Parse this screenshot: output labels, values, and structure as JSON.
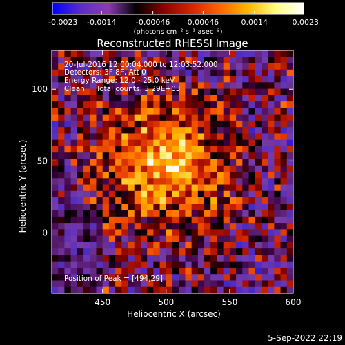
{
  "colorbar": {
    "tick_labels": [
      "-0.0023",
      "-0.0014",
      "-0.00046",
      "0.00046",
      "0.0014",
      "0.0023"
    ],
    "tick_values": [
      -0.0023,
      -0.0014,
      -0.00046,
      0.00046,
      0.0014,
      0.0023
    ],
    "range": [
      -0.0023,
      0.0023
    ],
    "units_label": "(photons cm⁻² s⁻¹ asec⁻²)",
    "colormap_stops": [
      "#0000ff",
      "#5a2dc8",
      "#8c3cb4",
      "#000000",
      "#8c0000",
      "#d22800",
      "#ff6400",
      "#ffb400",
      "#ffff80",
      "#ffffff"
    ]
  },
  "chart_data": {
    "type": "heatmap",
    "title": "Reconstructed RHESSI Image",
    "xlabel": "Heliocentric X (arcsec)",
    "ylabel": "Heliocentric Y (arcsec)",
    "xlim": [
      410,
      600
    ],
    "ylim": [
      -42,
      127
    ],
    "x_ticks": [
      450,
      500,
      550,
      600
    ],
    "y_ticks": [
      0,
      50,
      100
    ],
    "x_tick_labels": [
      "450",
      "500",
      "550",
      "600"
    ],
    "y_tick_labels": [
      "0",
      "50",
      "100"
    ],
    "peak_position": [
      494,
      29
    ],
    "annotations": [
      "20-Jul-2016 12:00:04.000 to 12:03:52.000",
      "Detectors: 3F 8F, Att 0",
      "Energy Range: 12.0 - 25.0 keV",
      "Clean     Total counts: 3.29E+03"
    ],
    "peak_label": "Position of Peak = [494,29]"
  },
  "footer": {
    "date": "5-Sep-2022 22:19"
  }
}
